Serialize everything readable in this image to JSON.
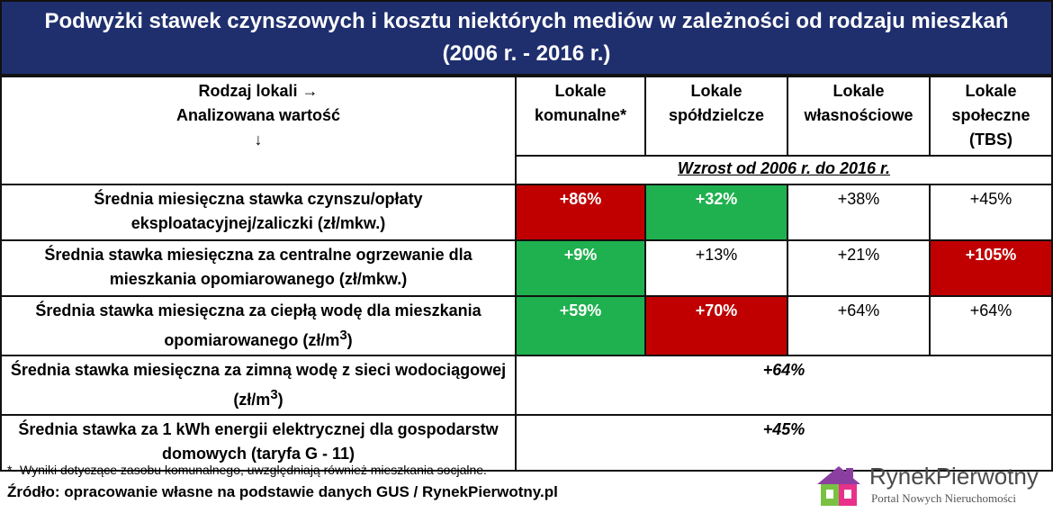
{
  "title": "Podwyżki stawek czynszowych i kosztu niektórych mediów w zależności od rodzaju mieszkań (2006 r. - 2016 r.)",
  "header": {
    "corner_line1": "Rodzaj lokali →",
    "corner_line2": "Analizowana wartość",
    "corner_line3": "↓",
    "col1": "Lokale komunalne*",
    "col2": "Lokale spółdzielcze",
    "col3": "Lokale własnościowe",
    "col4": "Lokale społeczne (TBS)",
    "sub": "Wzrost od 2006 r. do 2016 r."
  },
  "rows": [
    {
      "label": "Średnia miesięczna stawka czynszu/opłaty eksploatacyjnej/zaliczki (zł/mkw.)",
      "v1": "+86%",
      "v2": "+32%",
      "v3": "+38%",
      "v4": "+45%"
    },
    {
      "label": "Średnia stawka miesięczna za centralne ogrzewanie dla mieszkania opomiarowanego (zł/mkw.)",
      "v1": "+9%",
      "v2": "+13%",
      "v3": "+21%",
      "v4": "+105%"
    },
    {
      "label_part1": "Średnia stawka miesięczna za ciepłą wodę dla mieszkania opomiarowanego (zł/m",
      "label_sup": "3",
      "label_part2": ")",
      "v1": "+59%",
      "v2": "+70%",
      "v3": "+64%",
      "v4": "+64%"
    },
    {
      "label_part1": "Średnia stawka miesięczna za zimną wodę z sieci wodociągowej (zł/m",
      "label_sup": "3",
      "label_part2": ")",
      "value": "+64%"
    },
    {
      "label": "Średnia stawka za 1 kWh energii elektrycznej dla gospodarstw domowych (taryfa G - 11)",
      "value": "+45%"
    }
  ],
  "footnote": "*- Wyniki dotyczące zasobu komunalnego, uwzględniają również mieszkania socjalne.",
  "source": "Źródło: opracowanie własne na podstawie danych GUS / RynekPierwotny.pl",
  "logo": {
    "name_part1": "Rynek",
    "name_part2": "Pierwotny",
    "tagline": "Portal Nowych Nieruchomości"
  },
  "colors": {
    "title_bg": "#1f2f6e",
    "red": "#c00000",
    "green": "#1fb14f"
  }
}
